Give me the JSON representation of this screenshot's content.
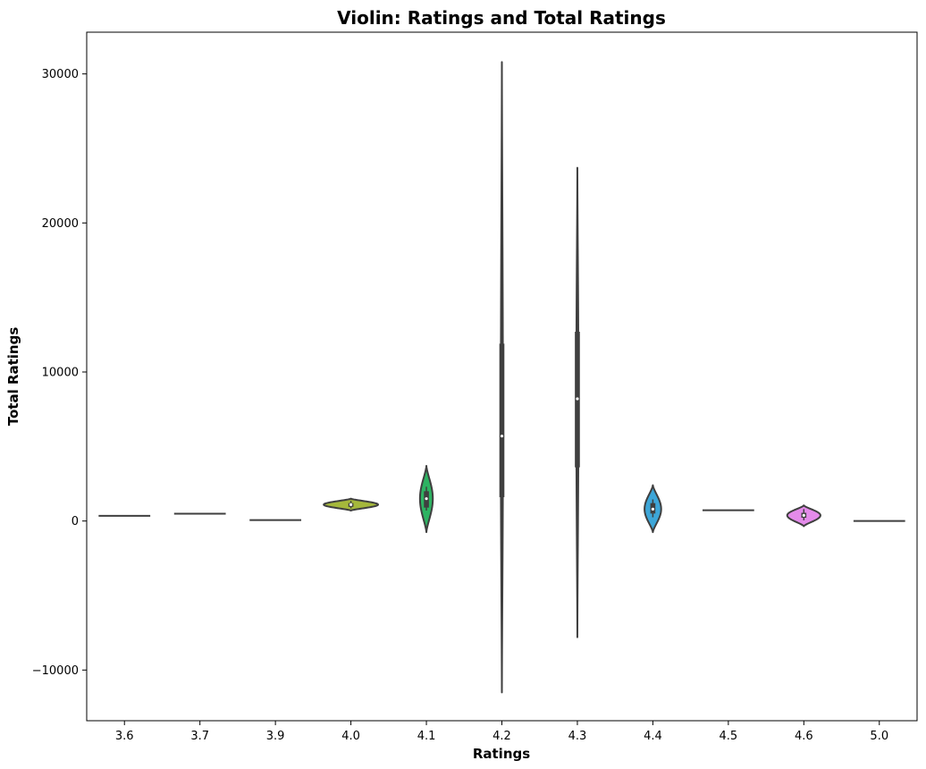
{
  "chart_data": {
    "type": "violin",
    "title": "Violin: Ratings and Total Ratings",
    "xlabel": "Ratings",
    "ylabel": "Total Ratings",
    "categories": [
      "3.6",
      "3.7",
      "3.9",
      "4.0",
      "4.1",
      "4.2",
      "4.3",
      "4.4",
      "4.5",
      "4.6",
      "5.0"
    ],
    "ylim": [
      -13400,
      32800
    ],
    "yticks": [
      -10000,
      0,
      10000,
      20000,
      30000
    ],
    "ytick_labels": [
      "−10000",
      "0",
      "10000",
      "20000",
      "30000"
    ],
    "grid": false,
    "violins": [
      {
        "category": "3.6",
        "color": "#4c4c4c",
        "value": 350,
        "ymin": 350,
        "ymax": 350,
        "q1": 350,
        "median": 350,
        "q3": 350,
        "whisker_low": 350,
        "whisker_high": 350,
        "max_halfwidth": 0.36
      },
      {
        "category": "3.7",
        "color": "#4c4c4c",
        "value": 490,
        "ymin": 490,
        "ymax": 490,
        "q1": 490,
        "median": 490,
        "q3": 490,
        "whisker_low": 490,
        "whisker_high": 490,
        "max_halfwidth": 0.36
      },
      {
        "category": "3.9",
        "color": "#4c4c4c",
        "value": 60,
        "ymin": 60,
        "ymax": 60,
        "q1": 60,
        "median": 60,
        "q3": 60,
        "whisker_low": 60,
        "whisker_high": 60,
        "max_halfwidth": 0.36
      },
      {
        "category": "4.0",
        "color": "#a5b83b",
        "ymin": 700,
        "ymax": 1500,
        "q1": 950,
        "median": 1100,
        "q3": 1200,
        "whisker_low": 850,
        "whisker_high": 1350,
        "max_halfwidth": 0.36
      },
      {
        "category": "4.1",
        "color": "#2db362",
        "ymin": -750,
        "ymax": 3700,
        "q1": 900,
        "median": 1500,
        "q3": 2000,
        "whisker_low": 700,
        "whisker_high": 2300,
        "max_halfwidth": 0.085
      },
      {
        "category": "4.2",
        "color": "#5e6fd6",
        "ymin": -11500,
        "ymax": 30800,
        "q1": 1600,
        "median": 5700,
        "q3": 11900,
        "whisker_low": 50,
        "whisker_high": 18500,
        "max_halfwidth": 0.014
      },
      {
        "category": "4.3",
        "color": "#3fa9a5",
        "ymin": -7800,
        "ymax": 23700,
        "q1": 3600,
        "median": 8200,
        "q3": 12700,
        "whisker_low": 300,
        "whisker_high": 18200,
        "max_halfwidth": 0.014
      },
      {
        "category": "4.4",
        "color": "#3da6d8",
        "ymin": -750,
        "ymax": 2400,
        "q1": 500,
        "median": 800,
        "q3": 1200,
        "whisker_low": 250,
        "whisker_high": 1450,
        "max_halfwidth": 0.11
      },
      {
        "category": "4.5",
        "color": "#4c4c4c",
        "value": 720,
        "ymin": 720,
        "ymax": 720,
        "q1": 720,
        "median": 720,
        "q3": 720,
        "whisker_low": 720,
        "whisker_high": 720,
        "max_halfwidth": 0.36
      },
      {
        "category": "4.6",
        "color": "#e48bea",
        "ymin": -350,
        "ymax": 1050,
        "q1": 220,
        "median": 380,
        "q3": 550,
        "whisker_low": 50,
        "whisker_high": 800,
        "max_halfwidth": 0.22
      },
      {
        "category": "5.0",
        "color": "#4c4c4c",
        "value": 0,
        "ymin": 0,
        "ymax": 0,
        "q1": 0,
        "median": 0,
        "q3": 0,
        "whisker_low": 0,
        "whisker_high": 0,
        "max_halfwidth": 0.36
      }
    ]
  }
}
